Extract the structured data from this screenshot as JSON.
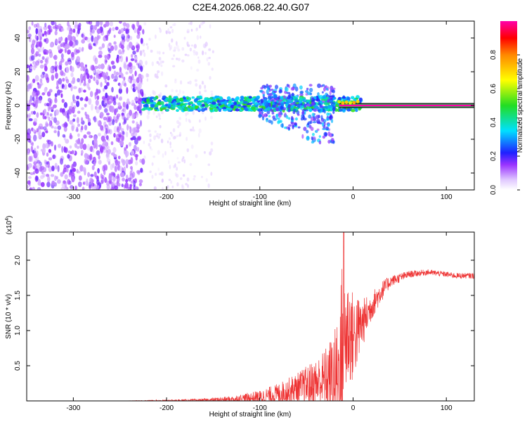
{
  "title": "C2E4.2026.068.22.40.G07",
  "chart_data": [
    {
      "id": "spectrogram",
      "type": "heatmap",
      "xlabel": "Height of straight line (km)",
      "ylabel": "Frequency (Hz)",
      "xlim": [
        -350,
        130
      ],
      "ylim": [
        -50,
        50
      ],
      "xticks": [
        -300,
        -200,
        -100,
        0,
        100
      ],
      "xtick_labels": [
        "-300",
        "-200",
        "-100",
        "0",
        "100"
      ],
      "yticks": [
        -40,
        -20,
        0,
        20,
        40
      ],
      "ytick_labels": [
        "-40",
        "-20",
        "0",
        "20",
        "40"
      ],
      "colorbar": {
        "label": "Normalized spectral amplitude",
        "range": [
          0,
          1
        ],
        "ticks": [
          0.0,
          0.2,
          0.4,
          0.6,
          0.8
        ],
        "tick_labels": [
          "0.0",
          "0.2",
          "0.4",
          "0.6",
          "0.8"
        ]
      },
      "regions": [
        {
          "name": "dense noise",
          "x": [
            -350,
            -225
          ],
          "freq": [
            -50,
            50
          ],
          "amplitude": 0.15
        },
        {
          "name": "sparse noise",
          "x": [
            -225,
            -150
          ],
          "freq": [
            -50,
            50
          ],
          "amplitude": 0.05
        },
        {
          "name": "signal ridge",
          "x": [
            -225,
            10
          ],
          "freq": [
            -3,
            5
          ],
          "amplitude": 0.35
        },
        {
          "name": "spread energy",
          "x": [
            -100,
            -20
          ],
          "freq": [
            -22,
            12
          ],
          "amplitude": 0.2
        },
        {
          "name": "strong tone",
          "x": [
            -15,
            130
          ],
          "freq": [
            0,
            0
          ],
          "amplitude": 1.0
        }
      ]
    },
    {
      "id": "snr",
      "type": "line",
      "xlabel": "Height of straight line (km)",
      "ylabel": "SNR (10 * v/v)",
      "multiplier": "(x10",
      "multiplier_exp": "4",
      "multiplier_close": ")",
      "color": "#ee3333",
      "xlim": [
        -350,
        130
      ],
      "ylim": [
        0,
        24000
      ],
      "xticks": [
        -300,
        -200,
        -100,
        0,
        100
      ],
      "xtick_labels": [
        "-300",
        "-200",
        "-100",
        "0",
        "100"
      ],
      "yticks": [
        5000,
        10000,
        15000,
        20000
      ],
      "ytick_labels": [
        "0.5",
        "1.0",
        "1.5",
        "2.0"
      ],
      "envelope": {
        "x": [
          -350,
          -250,
          -200,
          -160,
          -130,
          -100,
          -80,
          -60,
          -40,
          -30,
          -20,
          -15,
          -12,
          -10,
          -5,
          0,
          10,
          20,
          30,
          40,
          60,
          80,
          100,
          110,
          130
        ],
        "base": [
          0,
          0,
          50,
          100,
          200,
          500,
          1000,
          1800,
          2500,
          3000,
          3500,
          3500,
          5000,
          9000,
          10000,
          9000,
          11000,
          13500,
          15500,
          17000,
          18000,
          18300,
          18000,
          17800,
          17800
        ],
        "amp": [
          0,
          0,
          100,
          200,
          500,
          1000,
          1500,
          2200,
          3500,
          4500,
          6500,
          10000,
          15000,
          11000,
          8000,
          6500,
          3500,
          2000,
          1500,
          800,
          500,
          400,
          400,
          400,
          400
        ],
        "peak": {
          "x": -10,
          "y": 24000
        }
      }
    }
  ]
}
